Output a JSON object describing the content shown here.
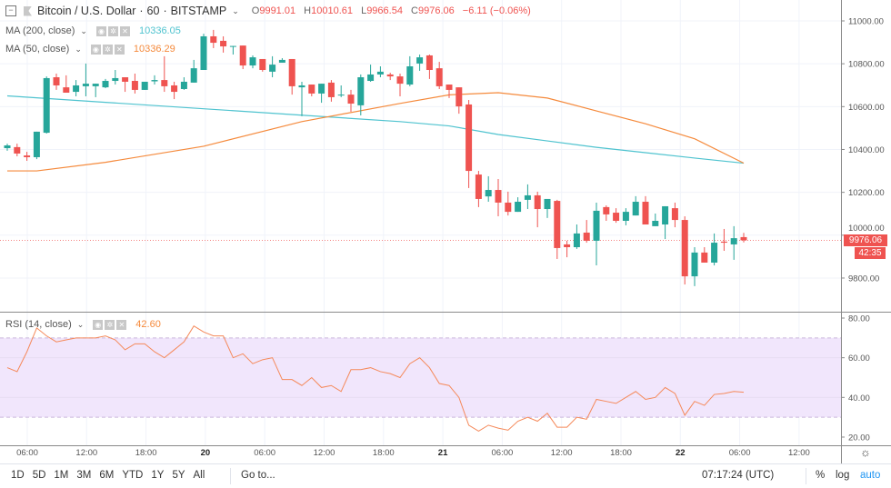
{
  "header": {
    "symbol": "Bitcoin / U.S. Dollar",
    "interval": "60",
    "exchange": "BITSTAMP",
    "open_label": "O",
    "open": "9991.01",
    "high_label": "H",
    "high": "10010.61",
    "low_label": "L",
    "low": "9966.54",
    "close_label": "C",
    "close": "9976.06",
    "change": "−6.11 (−0.06%)"
  },
  "indicators": {
    "ma200": {
      "label": "MA (200, close)",
      "value": "10336.05",
      "color": "#4fc3cf"
    },
    "ma50": {
      "label": "MA (50, close)",
      "value": "10336.29",
      "color": "#f58a3c"
    },
    "rsi": {
      "label": "RSI (14, close)",
      "value": "42.60",
      "color": "#f58a3c"
    }
  },
  "price_axis": {
    "labels": [
      "11000.00",
      "10800.00",
      "10600.00",
      "10400.00",
      "10200.00",
      "10000.00",
      "9800.00"
    ],
    "last_price": "9976.06",
    "countdown": "42:35"
  },
  "rsi_axis": {
    "labels": [
      "80.00",
      "60.00",
      "40.00",
      "20.00"
    ]
  },
  "time_axis": {
    "labels": [
      "06:00",
      "12:00",
      "18:00",
      "20",
      "06:00",
      "12:00",
      "18:00",
      "21",
      "06:00",
      "12:00",
      "18:00",
      "22",
      "06:00",
      "12:00"
    ]
  },
  "colors": {
    "up": "#26a69a",
    "down": "#ef5350",
    "rsi_band": "#f1e6fc",
    "auto": "#2196f3"
  },
  "chart_data": {
    "type": "candlestick",
    "interval": "60",
    "first_candle": "19 04:00",
    "ohlc": [
      [
        10406,
        10427,
        10394,
        10419
      ],
      [
        10411,
        10427,
        10368,
        10381
      ],
      [
        10372,
        10389,
        10347,
        10364
      ],
      [
        10364,
        10483,
        10355,
        10483
      ],
      [
        10478,
        10741,
        10474,
        10733
      ],
      [
        10737,
        10754,
        10678,
        10699
      ],
      [
        10690,
        10746,
        10665,
        10665
      ],
      [
        10669,
        10724,
        10648,
        10699
      ],
      [
        10695,
        10801,
        10648,
        10707
      ],
      [
        10695,
        10707,
        10644,
        10707
      ],
      [
        10690,
        10729,
        10686,
        10720
      ],
      [
        10720,
        10771,
        10703,
        10733
      ],
      [
        10737,
        10737,
        10669,
        10716
      ],
      [
        10720,
        10754,
        10661,
        10678
      ],
      [
        10678,
        10716,
        10678,
        10716
      ],
      [
        10718,
        10746,
        10703,
        10724
      ],
      [
        10724,
        10835,
        10669,
        10695
      ],
      [
        10699,
        10716,
        10635,
        10669
      ],
      [
        10682,
        10737,
        10678,
        10716
      ],
      [
        10712,
        10818,
        10712,
        10779
      ],
      [
        10771,
        10940,
        10771,
        10928
      ],
      [
        10928,
        10958,
        10873,
        10898
      ],
      [
        10907,
        10928,
        10852,
        10881
      ],
      [
        10881,
        10883,
        10843,
        10883
      ],
      [
        10885,
        10885,
        10775,
        10792
      ],
      [
        10792,
        10839,
        10779,
        10830
      ],
      [
        10822,
        10822,
        10763,
        10771
      ],
      [
        10763,
        10835,
        10737,
        10796
      ],
      [
        10805,
        10826,
        10805,
        10818
      ],
      [
        10822,
        10822,
        10656,
        10695
      ],
      [
        10690,
        10716,
        10555,
        10699
      ],
      [
        10703,
        10703,
        10648,
        10661
      ],
      [
        10661,
        10707,
        10618,
        10707
      ],
      [
        10712,
        10724,
        10623,
        10644
      ],
      [
        10652,
        10699,
        10644,
        10656
      ],
      [
        10656,
        10678,
        10576,
        10614
      ],
      [
        10606,
        10750,
        10559,
        10737
      ],
      [
        10720,
        10796,
        10716,
        10750
      ],
      [
        10750,
        10788,
        10737,
        10763
      ],
      [
        10750,
        10758,
        10724,
        10741
      ],
      [
        10741,
        10754,
        10648,
        10707
      ],
      [
        10703,
        10835,
        10695,
        10788
      ],
      [
        10801,
        10843,
        10767,
        10830
      ],
      [
        10839,
        10843,
        10729,
        10771
      ],
      [
        10779,
        10809,
        10682,
        10695
      ],
      [
        10703,
        10703,
        10640,
        10678
      ],
      [
        10690,
        10690,
        10567,
        10601
      ],
      [
        10610,
        10631,
        10220,
        10300
      ],
      [
        10283,
        10300,
        10131,
        10169
      ],
      [
        10181,
        10275,
        10156,
        10211
      ],
      [
        10211,
        10262,
        10088,
        10152
      ],
      [
        10152,
        10203,
        10092,
        10109
      ],
      [
        10109,
        10177,
        10109,
        10156
      ],
      [
        10165,
        10237,
        10122,
        10186
      ],
      [
        10186,
        10203,
        10037,
        10122
      ],
      [
        10122,
        10169,
        10080,
        10169
      ],
      [
        10160,
        10165,
        9889,
        9940
      ],
      [
        9957,
        9974,
        9897,
        9944
      ],
      [
        9944,
        10050,
        9936,
        10008
      ],
      [
        10012,
        10071,
        9965,
        9974
      ],
      [
        9974,
        10152,
        9859,
        10114
      ],
      [
        10131,
        10139,
        10067,
        10097
      ],
      [
        10105,
        10126,
        10058,
        10067
      ],
      [
        10067,
        10126,
        10046,
        10109
      ],
      [
        10092,
        10182,
        10092,
        10156
      ],
      [
        10156,
        10182,
        10050,
        10050
      ],
      [
        10042,
        10101,
        10042,
        10067
      ],
      [
        10050,
        10135,
        9982,
        10135
      ],
      [
        10126,
        10152,
        10037,
        10071
      ],
      [
        10071,
        10088,
        9770,
        9808
      ],
      [
        9808,
        9944,
        9762,
        9919
      ],
      [
        9919,
        9944,
        9872,
        9872
      ],
      [
        9872,
        10008,
        9859,
        9965
      ],
      [
        9970,
        10029,
        9927,
        9965
      ],
      [
        9957,
        10042,
        9885,
        9986
      ],
      [
        9991.01,
        10010.61,
        9966.54,
        9976.06
      ]
    ],
    "ma200": [
      [
        0,
        10650
      ],
      [
        10,
        10620
      ],
      [
        20,
        10590
      ],
      [
        30,
        10560
      ],
      [
        40,
        10530
      ],
      [
        45,
        10510
      ],
      [
        50,
        10470
      ],
      [
        55,
        10440
      ],
      [
        60,
        10410
      ],
      [
        65,
        10385
      ],
      [
        70,
        10360
      ],
      [
        75,
        10336.05
      ]
    ],
    "ma50": [
      [
        0,
        10300
      ],
      [
        3,
        10300
      ],
      [
        10,
        10340
      ],
      [
        20,
        10415
      ],
      [
        30,
        10530
      ],
      [
        40,
        10615
      ],
      [
        45,
        10655
      ],
      [
        50,
        10665
      ],
      [
        55,
        10640
      ],
      [
        60,
        10580
      ],
      [
        65,
        10520
      ],
      [
        70,
        10450
      ],
      [
        75,
        10336.29
      ]
    ],
    "rsi": [
      55,
      53,
      63,
      75,
      71,
      68,
      69,
      70,
      70,
      70,
      71,
      69,
      64,
      67,
      67,
      63,
      60,
      64,
      68,
      76,
      73,
      71,
      71,
      60,
      62,
      57,
      59,
      60,
      49,
      49,
      46,
      50,
      45,
      46,
      43,
      54,
      54,
      55,
      53,
      52,
      50,
      57,
      60,
      55,
      47,
      46,
      40,
      26,
      23,
      26,
      24.5,
      23.5,
      28,
      30,
      28,
      32,
      25,
      25,
      30,
      29,
      39,
      38,
      37,
      40,
      43,
      39,
      40,
      45,
      42,
      31,
      38,
      36,
      41.5,
      42,
      43,
      42.6
    ],
    "price_range": [
      9700,
      11050
    ],
    "rsi_range": [
      18,
      82
    ],
    "rsi_bands": [
      30,
      70
    ]
  },
  "bottom": {
    "ranges": [
      "1D",
      "5D",
      "1M",
      "3M",
      "6M",
      "YTD",
      "1Y",
      "5Y",
      "All"
    ],
    "goto": "Go to...",
    "clock": "07:17:24 (UTC)",
    "percent": "%",
    "log": "log",
    "auto": "auto"
  }
}
